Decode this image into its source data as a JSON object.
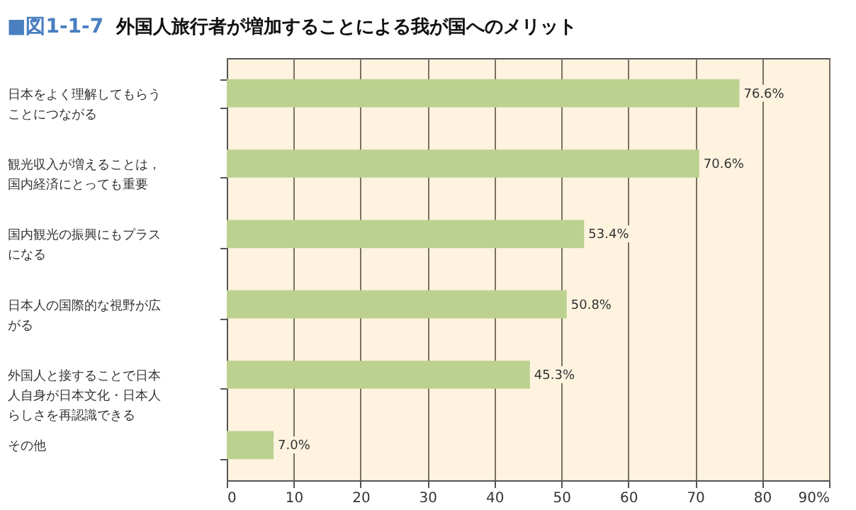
{
  "chart_data": {
    "type": "bar",
    "orientation": "horizontal",
    "title": "外国人旅行者が増加することによる我が国へのメリット",
    "annotations": [
      "■図1-1-7"
    ],
    "categories": [
      "日本をよく理解してもらうことにつながる",
      "観光収入が増えることは，国内経済にとっても重要",
      "国内観光の振興にもプラスになる",
      "日本人の国際的な視野が広がる",
      "外国人と接することで日本人自身が日本文化・日本人らしさを再認識できる",
      "その他"
    ],
    "values": [
      76.6,
      70.6,
      53.4,
      50.8,
      45.3,
      7.0
    ],
    "value_labels": [
      "76.6%",
      "70.6%",
      "53.4%",
      "50.8%",
      "45.3%",
      "7.0%"
    ],
    "color": "#bcd18f",
    "xlim": [
      0,
      90
    ],
    "xticks": [
      0,
      10,
      20,
      30,
      40,
      50,
      60,
      70,
      80,
      {
        "value": 90,
        "label": "90%"
      }
    ],
    "grid": "x"
  }
}
